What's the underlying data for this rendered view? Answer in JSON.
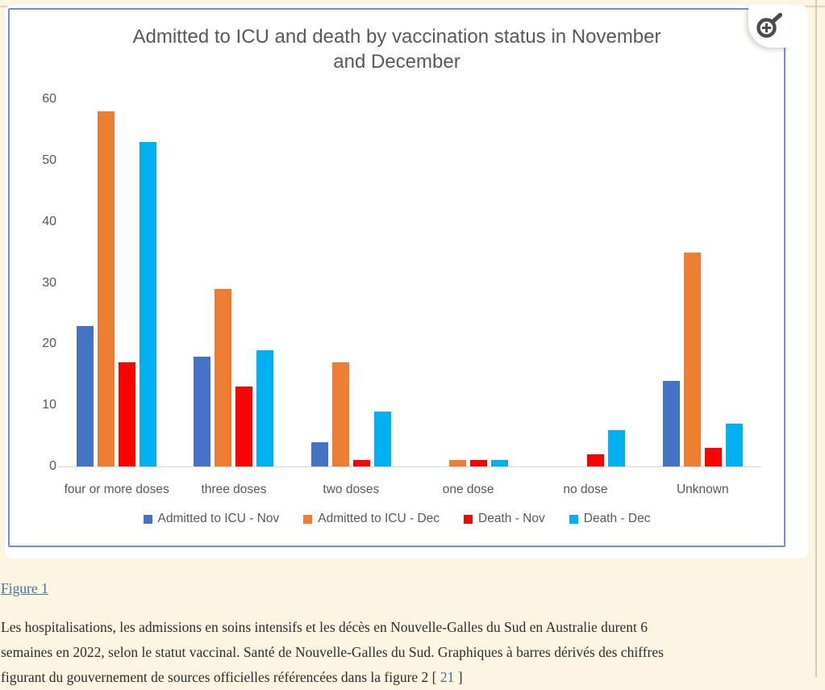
{
  "page": {
    "figure_link_label": "Figure 1",
    "caption_lines": [
      "Les hospitalisations, les admissions en soins intensifs et les décès en Nouvelle-Galles du Sud en Australie durent 6",
      "semaines en 2022, selon le statut vaccinal. Santé de Nouvelle-Galles du Sud. Graphiques à barres dérivés des chiffres"
    ],
    "caption_line3_prefix": "figurant du gouvernement de sources officielles référencées dans la figure 2 [ ",
    "caption_line3_link": "21",
    "caption_line3_suffix": " ]"
  },
  "toolbar": {
    "zoom_button_icon": "magnifier-plus-icon"
  },
  "colors": {
    "page_background": "#fbf5e2",
    "figure_border": "#6f91d2",
    "axis_text": "#595959",
    "link": "#44749f"
  },
  "chart_data": {
    "type": "bar",
    "title": "Admitted to ICU and death by vaccination status in November and December",
    "title_lines": [
      "Admitted to ICU and death by vaccination status in November",
      "and December"
    ],
    "categories": [
      "four or more doses",
      "three doses",
      "two doses",
      "one dose",
      "no dose",
      "Unknown"
    ],
    "series": [
      {
        "name": "Admitted to ICU - Nov",
        "color": "#4472c4",
        "values": [
          23,
          18,
          4,
          0,
          0,
          14
        ]
      },
      {
        "name": "Admitted to ICU - Dec",
        "color": "#ed7d31",
        "values": [
          58,
          29,
          17,
          1,
          0,
          35
        ]
      },
      {
        "name": "Death - Nov",
        "color": "#fe0000",
        "values": [
          17,
          13,
          1,
          1,
          2,
          3
        ]
      },
      {
        "name": "Death - Dec",
        "color": "#00b0f0",
        "values": [
          53,
          19,
          9,
          1,
          6,
          7
        ]
      }
    ],
    "xlabel": "",
    "ylabel": "",
    "y_ticks": [
      0,
      10,
      20,
      30,
      40,
      50,
      60
    ],
    "ylim": [
      0,
      60
    ],
    "grid": false,
    "legend_position": "bottom"
  }
}
